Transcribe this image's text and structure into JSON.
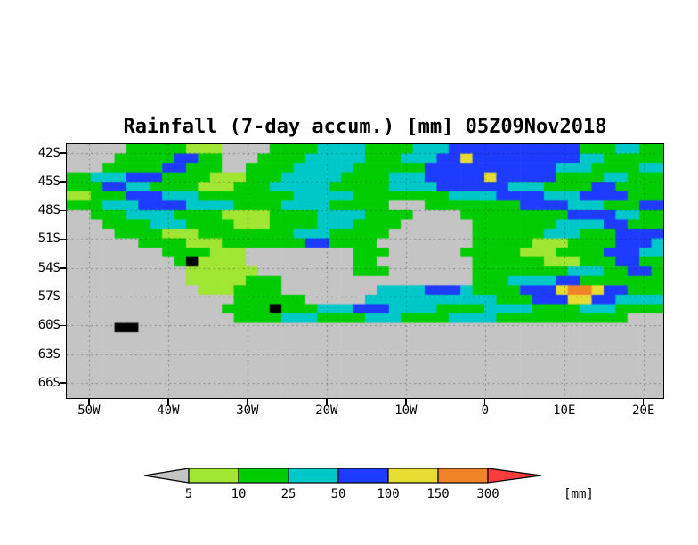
{
  "title": "Rainfall (7-day accum.) [mm] 05Z09Nov2018",
  "chart_data": {
    "type": "heatmap",
    "title": "Rainfall (7-day accum.) [mm] 05Z09Nov2018",
    "units": "mm",
    "x_tick_labels": [
      "50W",
      "40W",
      "30W",
      "20W",
      "10W",
      "0",
      "10E",
      "20E"
    ],
    "x_tick_lons": [
      -50,
      -40,
      -30,
      -20,
      -10,
      0,
      10,
      20
    ],
    "y_tick_labels": [
      "42S",
      "45S",
      "48S",
      "51S",
      "54S",
      "57S",
      "60S",
      "63S",
      "66S"
    ],
    "y_tick_lats": [
      -42,
      -45,
      -48,
      -51,
      -54,
      -57,
      -60,
      -63,
      -66
    ],
    "lon_range": [
      -52.8,
      22.5
    ],
    "lat_range": [
      -67.6,
      -41.1
    ],
    "levels": [
      5,
      10,
      25,
      50,
      100,
      150,
      300
    ],
    "colors": [
      "#c4c4c4",
      "#a0e632",
      "#00cd00",
      "#00c8c8",
      "#1e3cff",
      "#e6dc32",
      "#f08228",
      "#fa3c3c"
    ],
    "island_color": "#000000",
    "legend_unit_label": "[mm]",
    "grid_encoding": "27 rows top-to-bottom (about 41S to 68S), 50 chars left-to-right (about 53W to 22.5E); digit 0-7 indexes colors (rainfall class), 8 = island (black)",
    "grid": [
      "00000222221110000222233332222333444444444442223322",
      "00002222244220002222333332223334454444444443322222",
      "00022222442220022223333322222244444444444333222233",
      "22333444222211122233333222233344444544444222233222",
      "22244332222111222333332222233334444443332222442222",
      "11222444333222222223333322222222333344443334444222",
      "22233344443333222233332222200022222222444433322244",
      "00222333322221111222233332222000022222222244443322",
      "00022223332222111222233322220000002222222333344222",
      "00002222111222222223332222200000002222223332224444",
      "00000022221112222222442222000000002222211122224443",
      "00000000222211100000000022200000022222111222244433",
      "00000000028111100000000022000000002222221112224422",
      "00000000001111110000000022200000002222222233322442",
      "00000000001111122200000000000000002223333442222222",
      "00000000000111222200000000333344432222444566544222",
      "00000000000000222222000003333333333322244455443333",
      "00000000000002222822233344433332222333322223332222",
      "00000000000000222233322223332222333322222222222000",
      "00008800000000000000000000000000000000000000000000",
      "00000000000000000000000000000000000000000000000000",
      "00000000000000000000000000000000000000000000000000",
      "00000000000000000000000000000000000000000000000000",
      "00000000000000000000000000000000000000000000000000",
      "00000000000000000000000000000000000000000000000000",
      "00000000000000000000000000000000000000000000000000",
      "00000000000000000000000000000000000000000000000000"
    ]
  }
}
